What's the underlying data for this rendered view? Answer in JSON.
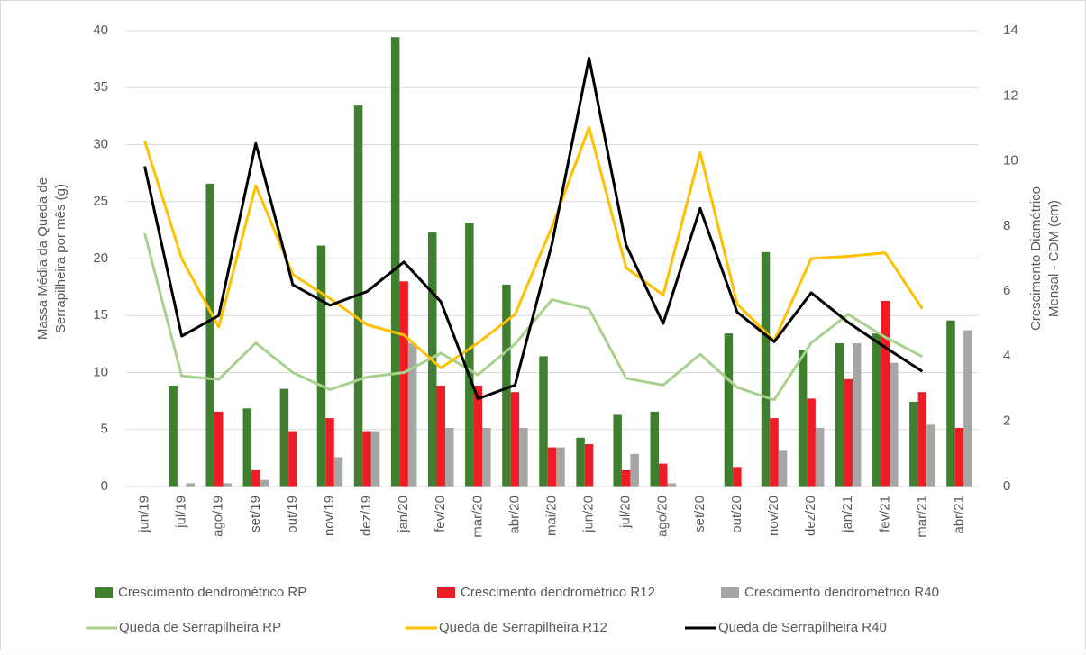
{
  "chart_data": {
    "type": "bar",
    "y_label": [
      "Massa Média da Queda de",
      "Serrapilheira por mês (g)"
    ],
    "y2_label": [
      "Crescimento Diamétrico",
      "Mensal - CDM (cm)"
    ],
    "categories": [
      "jun/19",
      "jul/19",
      "ago/19",
      "set/19",
      "out/19",
      "nov/19",
      "dez/19",
      "jan/20",
      "fev/20",
      "mar/20",
      "abr/20",
      "mai/20",
      "jun/20",
      "jul/20",
      "ago/20",
      "set/20",
      "out/20",
      "nov/20",
      "dez/20",
      "jan/21",
      "fev/21",
      "mar/21",
      "abr/21"
    ],
    "ylim": [
      0,
      40
    ],
    "yticks": [
      0,
      5,
      10,
      15,
      20,
      25,
      30,
      35,
      40
    ],
    "y2lim": [
      0,
      14
    ],
    "y2ticks": [
      0,
      2,
      4,
      6,
      8,
      10,
      12,
      14
    ],
    "series": [
      {
        "name": "Crescimento dendrométrico RP",
        "type": "bar",
        "axis": "y2",
        "color": "#3f7f2f",
        "values": [
          0,
          3.1,
          9.3,
          2.4,
          3.0,
          7.4,
          11.7,
          13.8,
          7.8,
          8.1,
          6.2,
          4.0,
          1.5,
          2.2,
          2.3,
          0,
          4.7,
          7.2,
          4.2,
          4.4,
          4.7,
          2.6,
          5.1
        ]
      },
      {
        "name": "Crescimento dendrométrico R12",
        "type": "bar",
        "axis": "y2",
        "color": "#ee1c24",
        "values": [
          0,
          0,
          2.3,
          0.5,
          1.7,
          2.1,
          1.7,
          6.3,
          3.1,
          3.1,
          2.9,
          1.2,
          1.3,
          0.5,
          0.7,
          0,
          0.6,
          2.1,
          2.7,
          3.3,
          5.7,
          2.9,
          1.8
        ]
      },
      {
        "name": "Crescimento dendrométrico R40",
        "type": "bar",
        "axis": "y2",
        "color": "#a6a6a6",
        "values": [
          0,
          0.1,
          0.1,
          0.2,
          0,
          0.9,
          1.7,
          4.4,
          1.8,
          1.8,
          1.8,
          1.2,
          0,
          1.0,
          0.1,
          0,
          0,
          1.1,
          1.8,
          4.4,
          3.8,
          1.9,
          4.8
        ]
      },
      {
        "name": "Queda de Serrapilheira RP",
        "type": "line",
        "color": "#a9d18e",
        "values": [
          22.2,
          9.7,
          9.4,
          12.6,
          10.0,
          8.5,
          9.6,
          10.0,
          11.7,
          9.8,
          12.5,
          16.4,
          15.6,
          9.5,
          8.9,
          11.6,
          8.7,
          7.6,
          12.6,
          15.1,
          13.1,
          11.4,
          null
        ]
      },
      {
        "name": "Queda de Serrapilheira R12",
        "type": "line",
        "color": "#ffc000",
        "values": [
          30.3,
          20.0,
          14.0,
          26.4,
          18.6,
          16.5,
          14.2,
          13.3,
          10.4,
          12.6,
          15.1,
          22.8,
          31.5,
          19.2,
          16.8,
          29.3,
          16.0,
          12.8,
          20.0,
          20.2,
          20.5,
          15.6,
          null
        ]
      },
      {
        "name": "Queda de Serrapilheira R40",
        "type": "line",
        "color": "#000000",
        "values": [
          28.1,
          13.2,
          15.0,
          30.1,
          17.7,
          15.9,
          17.1,
          19.7,
          16.2,
          7.7,
          8.9,
          21.3,
          37.6,
          21.2,
          14.3,
          24.4,
          15.3,
          12.7,
          17.0,
          14.4,
          12.2,
          10.1,
          null
        ]
      }
    ]
  }
}
